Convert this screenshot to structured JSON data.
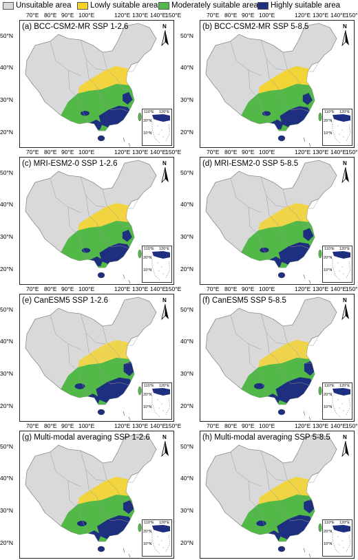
{
  "legend": [
    {
      "label": "Unsuitable area",
      "color": "#d9d9d9"
    },
    {
      "label": "Lowly suitable area",
      "color": "#f5d327"
    },
    {
      "label": "Moderately suitable area",
      "color": "#52b948"
    },
    {
      "label": "Highly suitable area",
      "color": "#1f2f80"
    }
  ],
  "colors": {
    "unsuitable": "#d9d9d9",
    "lowly": "#f5d327",
    "moderately": "#52b948",
    "highly": "#1f2f80",
    "water": "#8fd0ea"
  },
  "longitude_labels": [
    "70°E",
    "80°E",
    "90°E",
    "100°E",
    "120°E",
    "130°E",
    "140°E",
    "150°E"
  ],
  "latitude_labels": [
    "50°N",
    "40°N",
    "30°N",
    "20°N"
  ],
  "north_arrow_label": "N",
  "inset": {
    "longitude_labels": [
      "110°E",
      "120°E"
    ],
    "latitude_labels": [
      "20°N",
      "10°N"
    ]
  },
  "panels": [
    {
      "title": "(a) BCC-CSM2-MR SSP 1-2.6",
      "model": "BCC-CSM2-MR",
      "scenario": "SSP 1-2.6",
      "highly_level": 0.35,
      "yellow_level": 0.7
    },
    {
      "title": "(b) BCC-CSM2-MR SSP 5-8.5",
      "model": "BCC-CSM2-MR",
      "scenario": "SSP 5-8.5",
      "highly_level": 0.3,
      "yellow_level": 0.8
    },
    {
      "title": "(c) MRI-ESM2-0 SSP 1-2.6",
      "model": "MRI-ESM2-0",
      "scenario": "SSP 1-2.6",
      "highly_level": 0.3,
      "yellow_level": 0.7
    },
    {
      "title": "(d) MRI-ESM2-0 SSP 5-8.5",
      "model": "MRI-ESM2-0",
      "scenario": "SSP 5-8.5",
      "highly_level": 0.4,
      "yellow_level": 0.6
    },
    {
      "title": "(e) CanESM5 SSP 1-2.6",
      "model": "CanESM5",
      "scenario": "SSP 1-2.6",
      "highly_level": 0.6,
      "yellow_level": 0.5
    },
    {
      "title": "(f) CanESM5 SSP 5-8.5",
      "model": "CanESM5",
      "scenario": "SSP 5-8.5",
      "highly_level": 0.65,
      "yellow_level": 0.55
    },
    {
      "title": "(g) Multi-modal averaging SSP 1-2.6",
      "model": "Multi-modal averaging",
      "scenario": "SSP 1-2.6",
      "highly_level": 0.5,
      "yellow_level": 0.75
    },
    {
      "title": "(h) Multi-modal averaging SSP 5-8.5",
      "model": "Multi-modal averaging",
      "scenario": "SSP 5-8.5",
      "highly_level": 0.55,
      "yellow_level": 0.65
    }
  ]
}
